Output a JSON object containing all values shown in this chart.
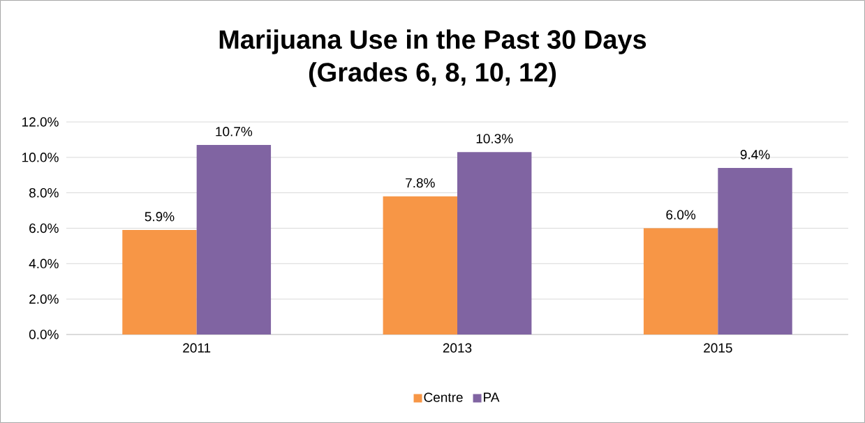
{
  "chart_data": {
    "type": "bar",
    "title": "Marijuana Use in the Past 30 Days",
    "subtitle": "(Grades 6, 8, 10, 12)",
    "categories": [
      "2011",
      "2013",
      "2015"
    ],
    "series": [
      {
        "name": "Centre",
        "color": "#f79646",
        "values": [
          5.9,
          7.8,
          6.0
        ],
        "value_labels": [
          "5.9%",
          "7.8%",
          "6.0%"
        ]
      },
      {
        "name": "PA",
        "color": "#8064a2",
        "values": [
          10.7,
          10.3,
          9.4
        ],
        "value_labels": [
          "10.7%",
          "10.3%",
          "9.4%"
        ]
      }
    ],
    "ylim": [
      0,
      12
    ],
    "yticks": [
      {
        "value": 0,
        "label": "0.0%"
      },
      {
        "value": 2,
        "label": "2.0%"
      },
      {
        "value": 4,
        "label": "4.0%"
      },
      {
        "value": 6,
        "label": "6.0%"
      },
      {
        "value": 8,
        "label": "8.0%"
      },
      {
        "value": 10,
        "label": "10.0%"
      },
      {
        "value": 12,
        "label": "12.0%"
      }
    ],
    "grid": "y",
    "legend": "bottom"
  }
}
